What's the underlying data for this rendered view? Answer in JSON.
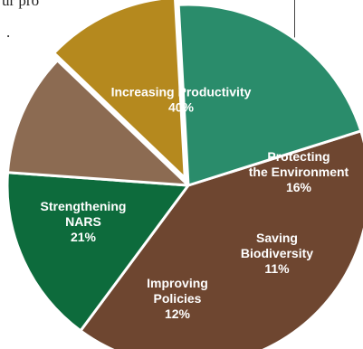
{
  "text_fragments": {
    "top": "ur pro",
    "mid": "."
  },
  "chart_data": {
    "type": "pie",
    "title": "",
    "slices": [
      {
        "label_lines": [
          "Increasing Productivity"
        ],
        "value_text": "40%",
        "value": 40,
        "color": "#6e4630"
      },
      {
        "label_lines": [
          "Protecting",
          "the Environment"
        ],
        "value_text": "16%",
        "value": 16,
        "color": "#0d6b3c"
      },
      {
        "label_lines": [
          "Saving",
          "Biodiversity"
        ],
        "value_text": "11%",
        "value": 11,
        "color": "#8c6b52"
      },
      {
        "label_lines": [
          "Improving",
          "Policies"
        ],
        "value_text": "12%",
        "value": 12,
        "color": "#b5891e"
      },
      {
        "label_lines": [
          "Strengthening",
          "NARS"
        ],
        "value_text": "21%",
        "value": 21,
        "color": "#2a8c6b"
      }
    ],
    "legend": "none",
    "border_color": "#ffffff"
  }
}
